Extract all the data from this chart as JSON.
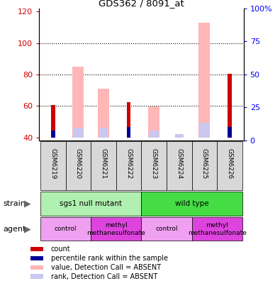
{
  "title": "GDS362 / 8091_at",
  "samples": [
    "GSM6219",
    "GSM6220",
    "GSM6221",
    "GSM6222",
    "GSM6223",
    "GSM6224",
    "GSM6225",
    "GSM6226"
  ],
  "ylim_left": [
    38,
    122
  ],
  "ylim_right": [
    0,
    100
  ],
  "yticks_left": [
    40,
    60,
    80,
    100,
    120
  ],
  "ytick_labels_left": [
    "40",
    "60",
    "80",
    "100",
    "120"
  ],
  "yticks_right": [
    0,
    25,
    50,
    75,
    100
  ],
  "ytick_labels_right": [
    "0",
    "25",
    "50",
    "75",
    "100%"
  ],
  "red_bars": [
    60.5,
    0,
    0,
    62.5,
    0,
    0,
    0,
    80.5
  ],
  "blue_bars": [
    44.5,
    0,
    0,
    46.5,
    0,
    0,
    0,
    46.5
  ],
  "pink_bars": [
    0,
    85,
    71,
    0,
    59.5,
    0,
    113,
    0
  ],
  "lavender_bars": [
    0,
    46,
    46,
    0,
    44.5,
    42,
    49.5,
    0
  ],
  "bar_bottom": 40,
  "pink_color": "#ffb6b6",
  "lavender_color": "#c8c8f0",
  "red_color": "#cc0000",
  "blue_color": "#000099",
  "bg_color": "#ffffff",
  "grid_color": "#000000",
  "strain_light": "#b0f0b0",
  "strain_dark": "#44dd44",
  "agent_light": "#f0a0f0",
  "agent_dark": "#dd44dd",
  "sample_box_color": "#d8d8d8",
  "legend_colors": [
    "#cc0000",
    "#000099",
    "#ffb6b6",
    "#c8c8f0"
  ],
  "legend_labels": [
    "count",
    "percentile rank within the sample",
    "value, Detection Call = ABSENT",
    "rank, Detection Call = ABSENT"
  ]
}
